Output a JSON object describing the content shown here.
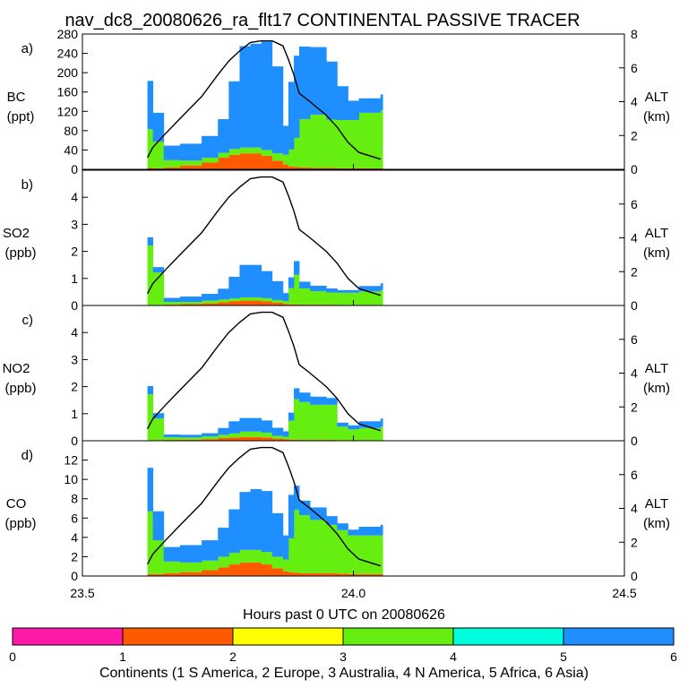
{
  "title": "nav_dc8_20080626_ra_flt17 CONTINENTAL PASSIVE TRACER",
  "xlabel": "Hours past 0 UTC on 20080626",
  "x_ticks": [
    "23.5",
    "24.0",
    "24.5"
  ],
  "colorbar": {
    "label": "Continents (1 S America, 2 Europe, 3 Australia, 4 N America, 5 Africa, 6 Asia)",
    "ticks": [
      "0",
      "1",
      "2",
      "3",
      "4",
      "5",
      "6"
    ],
    "colors": [
      "#ff1aa8",
      "#ff5a00",
      "#ffff00",
      "#66ee11",
      "#00ffdd",
      "#1f8fff"
    ]
  },
  "alt_label": "ALT",
  "alt_unit": "(km)",
  "chart_data": [
    {
      "type": "area",
      "panel": "a)",
      "species": "BC",
      "unit": "(ppt)",
      "xlim": [
        23.5,
        24.5
      ],
      "ylim": [
        0,
        280
      ],
      "y_ticks": [
        "0",
        "40",
        "80",
        "120",
        "160",
        "200",
        "240",
        "280"
      ],
      "y2lim": [
        0,
        8
      ],
      "y2_ticks": [
        "0",
        "2",
        "4",
        "6",
        "8"
      ],
      "x": [
        23.62,
        23.63,
        23.65,
        23.68,
        23.72,
        23.75,
        23.77,
        23.79,
        23.81,
        23.83,
        23.85,
        23.87,
        23.88,
        23.89,
        23.9,
        23.92,
        23.95,
        23.97,
        23.99,
        24.01,
        24.05
      ],
      "series": [
        {
          "name": "S America",
          "color": "#ff1aa8",
          "values": [
            0,
            0,
            0,
            0,
            0,
            0,
            0,
            0,
            0,
            0,
            0,
            0,
            0,
            0,
            0,
            0,
            0,
            0,
            0,
            0,
            0
          ]
        },
        {
          "name": "Europe",
          "color": "#ff5a00",
          "values": [
            3,
            2,
            4,
            8,
            14,
            24,
            30,
            33,
            33,
            28,
            18,
            10,
            6,
            5,
            4,
            3,
            3,
            2,
            2,
            2,
            2
          ]
        },
        {
          "name": "Australia",
          "color": "#ffff00",
          "values": [
            0,
            0,
            0,
            0,
            0,
            0,
            0,
            0,
            0,
            0,
            0,
            0,
            0,
            0,
            0,
            0,
            0,
            0,
            0,
            0,
            0
          ]
        },
        {
          "name": "N America",
          "color": "#66ee11",
          "values": [
            80,
            55,
            15,
            10,
            10,
            10,
            12,
            12,
            12,
            12,
            15,
            20,
            35,
            60,
            100,
            110,
            100,
            100,
            100,
            115,
            120
          ]
        },
        {
          "name": "Africa",
          "color": "#00ffdd",
          "values": [
            0,
            0,
            0,
            0,
            0,
            0,
            0,
            0,
            0,
            0,
            0,
            0,
            0,
            0,
            0,
            0,
            0,
            0,
            0,
            0,
            0
          ]
        },
        {
          "name": "Asia",
          "color": "#1f8fff",
          "values": [
            100,
            60,
            30,
            35,
            45,
            70,
            140,
            210,
            215,
            225,
            180,
            60,
            140,
            170,
            150,
            140,
            120,
            70,
            40,
            30,
            33
          ]
        }
      ],
      "altitude_km": [
        0.7,
        1.3,
        2.0,
        3.0,
        4.3,
        5.6,
        6.4,
        7.0,
        7.5,
        7.6,
        7.6,
        7.3,
        6.5,
        5.6,
        4.5,
        4.0,
        3.2,
        2.5,
        1.6,
        1.0,
        0.6
      ]
    },
    {
      "type": "area",
      "panel": "b)",
      "species": "SO2",
      "unit": "(ppb)",
      "xlim": [
        23.5,
        24.5
      ],
      "ylim": [
        0,
        5
      ],
      "y_ticks": [
        "0",
        "1",
        "2",
        "3",
        "4"
      ],
      "y2lim": [
        0,
        8
      ],
      "y2_ticks": [
        "0",
        "2",
        "4",
        "6"
      ],
      "x": [
        23.62,
        23.63,
        23.65,
        23.68,
        23.72,
        23.75,
        23.77,
        23.79,
        23.81,
        23.83,
        23.85,
        23.87,
        23.88,
        23.89,
        23.9,
        23.92,
        23.95,
        23.97,
        23.99,
        24.01,
        24.05
      ],
      "series": [
        {
          "name": "S America",
          "color": "#ff1aa8",
          "values": [
            0,
            0,
            0,
            0,
            0,
            0,
            0,
            0,
            0,
            0,
            0,
            0,
            0,
            0,
            0,
            0,
            0,
            0,
            0,
            0,
            0
          ]
        },
        {
          "name": "Europe",
          "color": "#ff5a00",
          "values": [
            0.02,
            0.02,
            0.03,
            0.05,
            0.08,
            0.12,
            0.16,
            0.18,
            0.18,
            0.15,
            0.1,
            0.06,
            0.04,
            0.04,
            0.03,
            0.03,
            0.03,
            0.02,
            0.02,
            0.02,
            0.02
          ]
        },
        {
          "name": "Australia",
          "color": "#ffff00",
          "values": [
            0,
            0,
            0,
            0,
            0,
            0,
            0,
            0,
            0,
            0,
            0,
            0,
            0,
            0,
            0,
            0,
            0,
            0,
            0,
            0,
            0
          ]
        },
        {
          "name": "N America",
          "color": "#66ee11",
          "values": [
            2.2,
            1.2,
            0.1,
            0.08,
            0.1,
            0.1,
            0.1,
            0.12,
            0.12,
            0.12,
            0.1,
            0.1,
            0.6,
            1.1,
            0.6,
            0.5,
            0.45,
            0.45,
            0.45,
            0.5,
            0.55
          ]
        },
        {
          "name": "Africa",
          "color": "#00ffdd",
          "values": [
            0,
            0,
            0,
            0,
            0,
            0,
            0,
            0,
            0,
            0,
            0,
            0,
            0,
            0,
            0,
            0,
            0,
            0,
            0,
            0,
            0
          ]
        },
        {
          "name": "Asia",
          "color": "#1f8fff",
          "values": [
            0.3,
            0.2,
            0.15,
            0.2,
            0.25,
            0.4,
            0.8,
            1.2,
            1.2,
            1.0,
            0.7,
            0.3,
            0.4,
            0.5,
            0.25,
            0.2,
            0.15,
            0.1,
            0.1,
            0.2,
            0.25
          ]
        }
      ],
      "altitude_km": [
        0.7,
        1.3,
        2.0,
        3.0,
        4.3,
        5.6,
        6.4,
        7.0,
        7.5,
        7.6,
        7.6,
        7.3,
        6.5,
        5.6,
        4.5,
        4.0,
        3.2,
        2.5,
        1.6,
        1.0,
        0.6
      ]
    },
    {
      "type": "area",
      "panel": "c)",
      "species": "NO2",
      "unit": "(ppb)",
      "xlim": [
        23.5,
        24.5
      ],
      "ylim": [
        0,
        5
      ],
      "y_ticks": [
        "0",
        "1",
        "2",
        "3",
        "4"
      ],
      "y2lim": [
        0,
        8
      ],
      "y2_ticks": [
        "0",
        "2",
        "4",
        "6"
      ],
      "x": [
        23.62,
        23.63,
        23.65,
        23.68,
        23.72,
        23.75,
        23.77,
        23.79,
        23.81,
        23.83,
        23.85,
        23.87,
        23.88,
        23.89,
        23.9,
        23.92,
        23.95,
        23.97,
        23.99,
        24.01,
        24.05
      ],
      "series": [
        {
          "name": "S America",
          "color": "#ff1aa8",
          "values": [
            0,
            0,
            0,
            0,
            0,
            0,
            0,
            0,
            0,
            0,
            0,
            0,
            0,
            0,
            0,
            0,
            0,
            0,
            0,
            0,
            0
          ]
        },
        {
          "name": "Europe",
          "color": "#ff5a00",
          "values": [
            0.02,
            0.02,
            0.03,
            0.04,
            0.06,
            0.1,
            0.12,
            0.14,
            0.14,
            0.12,
            0.08,
            0.05,
            0.04,
            0.04,
            0.03,
            0.03,
            0.03,
            0.02,
            0.02,
            0.02,
            0.02
          ]
        },
        {
          "name": "Australia",
          "color": "#ffff00",
          "values": [
            0,
            0,
            0,
            0,
            0,
            0,
            0,
            0,
            0,
            0,
            0,
            0,
            0,
            0,
            0,
            0,
            0,
            0,
            0,
            0,
            0
          ]
        },
        {
          "name": "N America",
          "color": "#66ee11",
          "values": [
            1.7,
            0.8,
            0.1,
            0.08,
            0.1,
            0.12,
            0.15,
            0.2,
            0.2,
            0.18,
            0.1,
            0.1,
            0.7,
            1.5,
            1.4,
            1.3,
            1.3,
            0.5,
            0.4,
            0.45,
            0.5
          ]
        },
        {
          "name": "Africa",
          "color": "#00ffdd",
          "values": [
            0,
            0,
            0,
            0,
            0,
            0,
            0,
            0,
            0,
            0,
            0,
            0,
            0,
            0,
            0,
            0,
            0,
            0,
            0,
            0,
            0
          ]
        },
        {
          "name": "Asia",
          "color": "#1f8fff",
          "values": [
            0.3,
            0.2,
            0.1,
            0.1,
            0.12,
            0.25,
            0.45,
            0.5,
            0.5,
            0.45,
            0.3,
            0.2,
            0.3,
            0.4,
            0.35,
            0.3,
            0.25,
            0.15,
            0.15,
            0.25,
            0.3
          ]
        }
      ],
      "altitude_km": [
        0.7,
        1.3,
        2.0,
        3.0,
        4.3,
        5.6,
        6.4,
        7.0,
        7.5,
        7.6,
        7.6,
        7.3,
        6.5,
        5.6,
        4.5,
        4.0,
        3.2,
        2.5,
        1.6,
        1.0,
        0.6
      ]
    },
    {
      "type": "area",
      "panel": "d)",
      "species": "CO",
      "unit": "(ppb)",
      "xlim": [
        23.5,
        24.5
      ],
      "ylim": [
        0,
        14
      ],
      "y_ticks": [
        "0",
        "2",
        "4",
        "6",
        "8",
        "10",
        "12"
      ],
      "y2lim": [
        0,
        8
      ],
      "y2_ticks": [
        "0",
        "2",
        "4",
        "6"
      ],
      "x": [
        23.62,
        23.63,
        23.65,
        23.68,
        23.72,
        23.75,
        23.77,
        23.79,
        23.81,
        23.83,
        23.85,
        23.87,
        23.88,
        23.89,
        23.9,
        23.92,
        23.95,
        23.97,
        23.99,
        24.01,
        24.05
      ],
      "series": [
        {
          "name": "S America",
          "color": "#ff1aa8",
          "values": [
            0,
            0,
            0,
            0,
            0,
            0,
            0,
            0,
            0,
            0,
            0,
            0,
            0,
            0,
            0,
            0,
            0,
            0,
            0,
            0,
            0
          ]
        },
        {
          "name": "Europe",
          "color": "#ff5a00",
          "values": [
            0.2,
            0.2,
            0.3,
            0.4,
            0.6,
            0.9,
            1.2,
            1.4,
            1.4,
            1.2,
            0.8,
            0.5,
            0.4,
            0.35,
            0.3,
            0.3,
            0.3,
            0.25,
            0.2,
            0.2,
            0.2
          ]
        },
        {
          "name": "Australia",
          "color": "#ffff00",
          "values": [
            0,
            0,
            0,
            0,
            0,
            0,
            0,
            0,
            0,
            0,
            0,
            0,
            0,
            0,
            0,
            0,
            0,
            0,
            0,
            0,
            0
          ]
        },
        {
          "name": "N America",
          "color": "#66ee11",
          "values": [
            6.5,
            3.5,
            1.2,
            1.0,
            1.0,
            1.1,
            1.2,
            1.3,
            1.3,
            1.3,
            1.2,
            1.2,
            3.5,
            6.5,
            6.0,
            5.5,
            5.0,
            4.5,
            4.0,
            4.0,
            4.0
          ]
        },
        {
          "name": "Africa",
          "color": "#00ffdd",
          "values": [
            0,
            0,
            0,
            0,
            0,
            0,
            0,
            0,
            0,
            0,
            0,
            0,
            0,
            0,
            0,
            0,
            0,
            0,
            0,
            0,
            0
          ]
        },
        {
          "name": "Asia",
          "color": "#1f8fff",
          "values": [
            4.5,
            3.0,
            1.5,
            1.8,
            2.1,
            3.0,
            4.5,
            6.0,
            6.3,
            6.3,
            4.5,
            2.5,
            4.5,
            2.5,
            1.5,
            1.3,
            0.9,
            0.7,
            0.6,
            0.9,
            1.1
          ]
        }
      ],
      "altitude_km": [
        0.7,
        1.3,
        2.0,
        3.0,
        4.3,
        5.6,
        6.4,
        7.0,
        7.5,
        7.6,
        7.6,
        7.3,
        6.5,
        5.6,
        4.5,
        4.0,
        3.2,
        2.5,
        1.6,
        1.0,
        0.6
      ]
    }
  ]
}
